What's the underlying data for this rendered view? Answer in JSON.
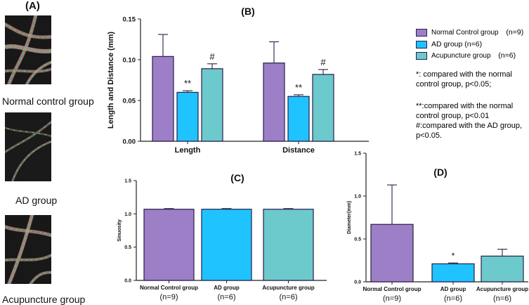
{
  "panel_a": {
    "label": "(A)",
    "groups": [
      {
        "caption": "Normal control group"
      },
      {
        "caption": "AD group"
      },
      {
        "caption": "Acupuncture group"
      }
    ]
  },
  "legend": {
    "items": [
      {
        "name": "Normal Control group",
        "n": "(n=9)",
        "color": "#9d7fc7"
      },
      {
        "name": "AD group (n=6)",
        "n": "",
        "color": "#1ec3ff"
      },
      {
        "name": "Acupuncture group",
        "n": "(n=6)",
        "color": "#6cc9cc"
      }
    ],
    "notes": [
      "*:  compared with the normal control group, p<0.05;",
      "**:compared with the normal control group,  p<0.01",
      "#:compared with the AD group,  p<0.05."
    ]
  },
  "colors": {
    "normal": "#9d7fc7",
    "ad": "#1ec3ff",
    "acu": "#6cc9cc",
    "axis": "#222222",
    "edge": "#2a1e4a"
  },
  "chart_data": [
    {
      "id": "B",
      "panel_label": "(B)",
      "type": "bar",
      "ylabel": "Length and Distance (mm)",
      "ylim": [
        0,
        0.15
      ],
      "yticks": [
        "0.00",
        "0.05",
        "0.10",
        "0.15"
      ],
      "categories": [
        "Length",
        "Distance"
      ],
      "series": [
        {
          "name": "Normal Control group",
          "values": [
            0.104,
            0.096
          ],
          "errors": [
            0.027,
            0.026
          ],
          "marks": [
            "",
            ""
          ]
        },
        {
          "name": "AD group",
          "values": [
            0.06,
            0.055
          ],
          "errors": [
            0.002,
            0.002
          ],
          "marks": [
            "**",
            "**"
          ]
        },
        {
          "name": "Acupuncture group",
          "values": [
            0.089,
            0.082
          ],
          "errors": [
            0.006,
            0.006
          ],
          "marks": [
            "#",
            "#"
          ]
        }
      ]
    },
    {
      "id": "C",
      "panel_label": "(C)",
      "type": "bar",
      "ylabel": "Sinuosity",
      "ylim": [
        0,
        1.5
      ],
      "yticks": [
        "0.0",
        "0.5",
        "1.0",
        "1.5"
      ],
      "categories": [
        "Normal Control group",
        "AD group",
        "Acupuncture group"
      ],
      "n_labels": [
        "(n=9)",
        "(n=6)",
        "(n=6)"
      ],
      "values": [
        1.07,
        1.07,
        1.07
      ],
      "errors": [
        0.01,
        0.01,
        0.01
      ],
      "marks": [
        "",
        "",
        ""
      ]
    },
    {
      "id": "D",
      "panel_label": "(D)",
      "type": "bar",
      "ylabel": "Diameter(mm)",
      "ylim": [
        0,
        1.5
      ],
      "yticks": [
        "0.0",
        "0.5",
        "1.0",
        "1.5"
      ],
      "categories": [
        "Normal Control group",
        "AD group",
        "Acupuncture group"
      ],
      "n_labels": [
        "(n=9)",
        "(n=6)",
        "(n=6)"
      ],
      "values": [
        0.67,
        0.21,
        0.3
      ],
      "errors": [
        0.46,
        0.01,
        0.08
      ],
      "marks": [
        "",
        "*",
        ""
      ]
    }
  ]
}
